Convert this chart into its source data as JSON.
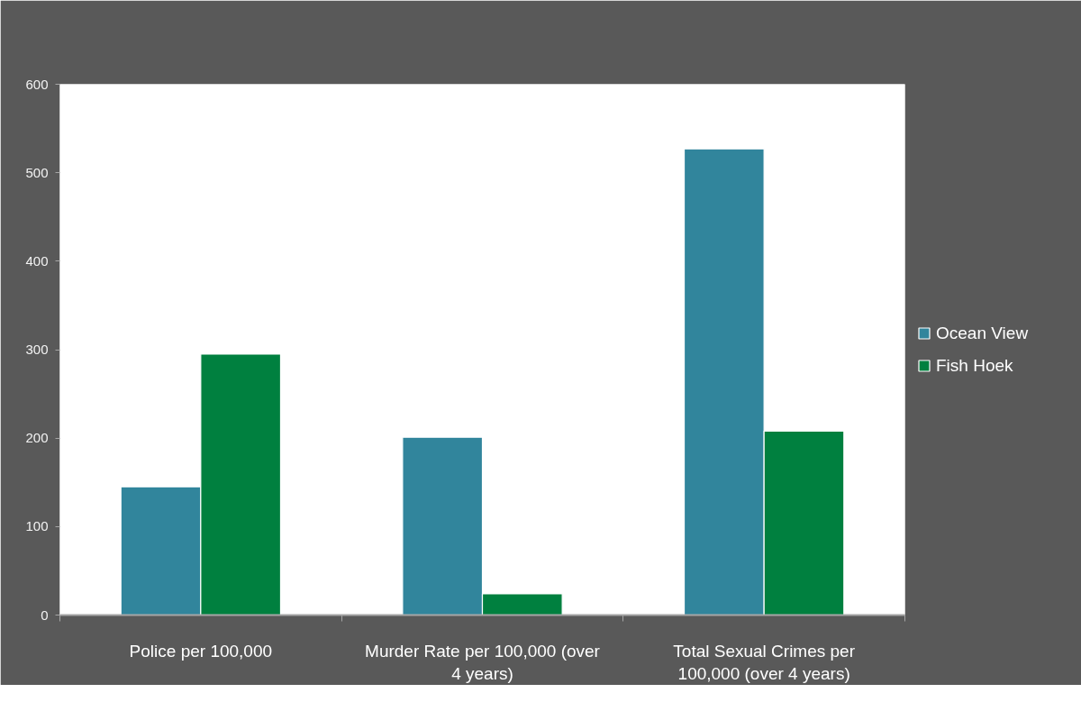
{
  "chart_data": {
    "type": "bar",
    "categories": [
      "Police per 100,000",
      "Murder Rate per 100,000 (over 4 years)",
      "Total Sexual Crimes per 100,000 (over 4 years)"
    ],
    "series": [
      {
        "name": "Ocean View",
        "color": "#31859c",
        "values": [
          145,
          201,
          527
        ]
      },
      {
        "name": "Fish Hoek",
        "color": "#00803f",
        "values": [
          295,
          24,
          208
        ]
      }
    ],
    "ylim": [
      0,
      600
    ],
    "yticks": [
      0,
      100,
      200,
      300,
      400,
      500,
      600
    ],
    "grid": false,
    "legend": "right"
  }
}
